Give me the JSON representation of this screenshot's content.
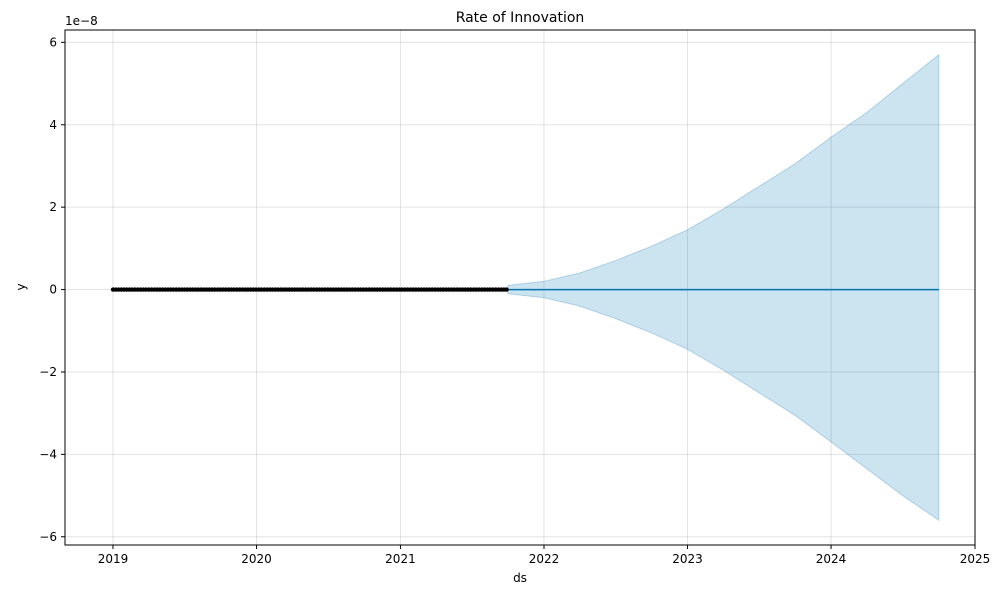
{
  "chart_data": {
    "type": "line",
    "title": "Rate of Innovation",
    "xlabel": "ds",
    "ylabel": "y",
    "y_multiplier_label": "1e−8",
    "y_unit_scale": 1e-08,
    "xlim": [
      "2018-09-01",
      "2025-01-01"
    ],
    "ylim": [
      -6.2e-08,
      6.3e-08
    ],
    "x_ticks": [
      "2019-01-01",
      "2020-01-01",
      "2021-01-01",
      "2022-01-01",
      "2023-01-01",
      "2024-01-01",
      "2025-01-01"
    ],
    "x_tick_labels": [
      "2019",
      "2020",
      "2021",
      "2022",
      "2023",
      "2024",
      "2025"
    ],
    "y_ticks": [
      -6e-08,
      -4e-08,
      -2e-08,
      0,
      2e-08,
      4e-08,
      6e-08
    ],
    "y_tick_labels": [
      "−6",
      "−4",
      "−2",
      "0",
      "2",
      "4",
      "6"
    ],
    "grid": true,
    "series": [
      {
        "name": "",
        "style": "markers",
        "color": "#000000",
        "x_start": "2019-01-01",
        "x_end": "2021-10-01",
        "value": 0
      },
      {
        "name": "",
        "style": "line",
        "color": "#0072b2",
        "x": [
          "2019-01-01",
          "2024-10-01"
        ],
        "y": [
          0,
          0
        ]
      }
    ],
    "uncertainty_band": {
      "color": "#0072b2",
      "opacity": 0.2,
      "x": [
        "2021-10-01",
        "2022-01-01",
        "2022-04-01",
        "2022-07-01",
        "2022-10-01",
        "2023-01-01",
        "2023-04-01",
        "2023-07-01",
        "2023-10-01",
        "2024-01-01",
        "2024-04-01",
        "2024-07-01",
        "2024-10-01"
      ],
      "upper": [
        1e-09,
        2e-09,
        4e-09,
        7e-09,
        1.05e-08,
        1.45e-08,
        1.95e-08,
        2.5e-08,
        3.05e-08,
        3.7e-08,
        4.3e-08,
        5e-08,
        5.7e-08
      ],
      "lower": [
        -1e-09,
        -2e-09,
        -4e-09,
        -7e-09,
        -1.05e-08,
        -1.45e-08,
        -1.95e-08,
        -2.5e-08,
        -3.05e-08,
        -3.7e-08,
        -4.35e-08,
        -5e-08,
        -5.6e-08
      ]
    }
  }
}
